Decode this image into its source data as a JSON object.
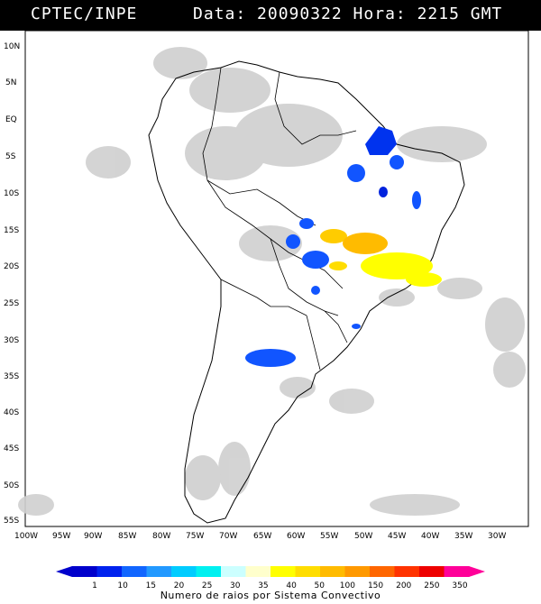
{
  "header": {
    "source": "CPTEC/INPE",
    "datetime": "Data: 20090322 Hora: 2215 GMT"
  },
  "map": {
    "lat_labels": [
      "10N",
      "5N",
      "EQ",
      "5S",
      "10S",
      "15S",
      "20S",
      "25S",
      "30S",
      "35S",
      "40S",
      "45S",
      "50S",
      "55S"
    ],
    "lon_labels": [
      "100W",
      "95W",
      "90W",
      "85W",
      "80W",
      "75W",
      "70W",
      "65W",
      "60W",
      "55W",
      "50W",
      "45W",
      "40W",
      "35W",
      "30W"
    ]
  },
  "colorbar": {
    "labels": [
      "1",
      "10",
      "15",
      "20",
      "25",
      "30",
      "35",
      "40",
      "50",
      "100",
      "150",
      "200",
      "250",
      "350"
    ],
    "colors": [
      "#0000cc",
      "#0022ee",
      "#1166ff",
      "#2299ff",
      "#00ccff",
      "#00f0f0",
      "#ccffff",
      "#ffffcc",
      "#ffff00",
      "#ffdd00",
      "#ffbb00",
      "#ff9900",
      "#ff6600",
      "#ff3300",
      "#ee0000",
      "#ff0099"
    ],
    "caption": "Numero de raios por Sistema Convectivo"
  }
}
